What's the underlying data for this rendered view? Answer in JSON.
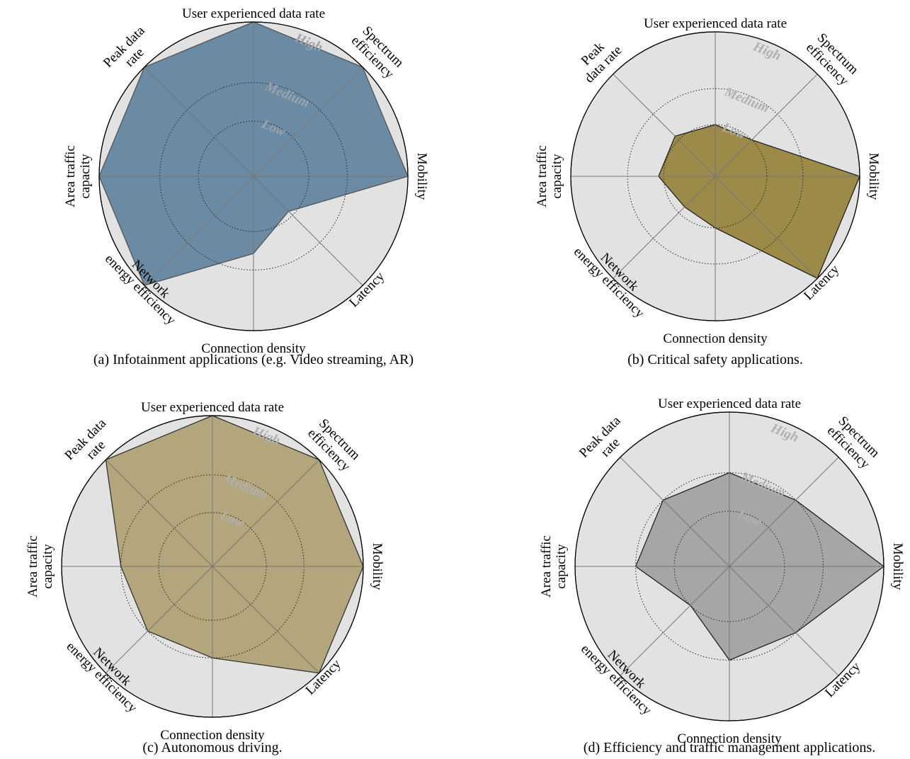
{
  "chart_data": [
    {
      "type": "radar",
      "caption": "(a) Infotainment applications (e.g. Video streaming, AR)",
      "axes": [
        {
          "label": [
            "User experienced data rate"
          ]
        },
        {
          "label": [
            "Spectrum",
            "efficiency"
          ]
        },
        {
          "label": [
            "Mobility"
          ]
        },
        {
          "label": [
            "Latency"
          ]
        },
        {
          "label": [
            "Connection density"
          ]
        },
        {
          "label": [
            "Network",
            "energy efficiency"
          ]
        },
        {
          "label": [
            "Area traffic",
            "capacity"
          ]
        },
        {
          "label": [
            "Peak data",
            "rate"
          ]
        }
      ],
      "levels": [
        "Low",
        "Medium",
        "High"
      ],
      "rmax": 1.4,
      "values": [
        1.4,
        1.4,
        1.4,
        0.45,
        0.7,
        1.4,
        1.4,
        1.4
      ],
      "fill": "#6b8aa3",
      "stroke": "#555555",
      "level_label_color": "#9aa3ab",
      "background": "#e2e2e2"
    },
    {
      "type": "radar",
      "caption": "(b) Critical safety applications.",
      "axes": [
        {
          "label": [
            "User experienced data rate"
          ]
        },
        {
          "label": [
            "Spectrum",
            "efficiency"
          ]
        },
        {
          "label": [
            "Mobility"
          ]
        },
        {
          "label": [
            "Latency"
          ]
        },
        {
          "label": [
            "Connection density"
          ]
        },
        {
          "label": [
            "Network",
            "energy efficiency"
          ]
        },
        {
          "label": [
            "Area traffic",
            "capacity"
          ]
        },
        {
          "label": [
            "Peak",
            "data rate"
          ]
        }
      ],
      "levels": [
        "Low",
        "Medium",
        "High"
      ],
      "rmax": 1.4,
      "values": [
        0.5,
        0.5,
        1.4,
        1.4,
        0.5,
        0.42,
        0.55,
        0.55
      ],
      "fill": "#9c8a48",
      "stroke": "#222222",
      "level_label_color": "#b0b0b0",
      "background": "#e2e2e2"
    },
    {
      "type": "radar",
      "caption": "(c) Autonomous driving.",
      "axes": [
        {
          "label": [
            "User experienced data rate"
          ]
        },
        {
          "label": [
            "Spectrum",
            "efficiency"
          ]
        },
        {
          "label": [
            "Mobility"
          ]
        },
        {
          "label": [
            "Latency"
          ]
        },
        {
          "label": [
            "Connection density"
          ]
        },
        {
          "label": [
            "Network",
            "energy efficiency"
          ]
        },
        {
          "label": [
            "Area traffic",
            "capacity"
          ]
        },
        {
          "label": [
            "Peak data",
            "rate"
          ]
        }
      ],
      "levels": [
        "Low",
        "Medium",
        "High"
      ],
      "rmax": 1.4,
      "values": [
        1.4,
        1.4,
        1.4,
        1.4,
        0.85,
        0.85,
        0.85,
        1.4
      ],
      "fill": "#b3a57c",
      "stroke": "#333333",
      "level_label_color": "#b0b0b0",
      "background": "#e2e2e2"
    },
    {
      "type": "radar",
      "caption": "(d) Efficiency and traffic management applications.",
      "axes": [
        {
          "label": [
            "User experienced data rate"
          ]
        },
        {
          "label": [
            "Spectrum",
            "efficiency"
          ]
        },
        {
          "label": [
            "Mobility"
          ]
        },
        {
          "label": [
            "Latency"
          ]
        },
        {
          "label": [
            "Connection density"
          ]
        },
        {
          "label": [
            "Network",
            "energy efficiency"
          ]
        },
        {
          "label": [
            "Area traffic",
            "capacity"
          ]
        },
        {
          "label": [
            "Peak data",
            "rate"
          ]
        }
      ],
      "levels": [
        "Low",
        "Medium",
        "High"
      ],
      "rmax": 1.4,
      "values": [
        0.85,
        0.85,
        1.4,
        0.85,
        0.85,
        0.5,
        0.85,
        0.85
      ],
      "fill": "#a6a6a6",
      "stroke": "#222222",
      "level_label_color": "#b0b0b0",
      "background": "#e2e2e2"
    }
  ]
}
